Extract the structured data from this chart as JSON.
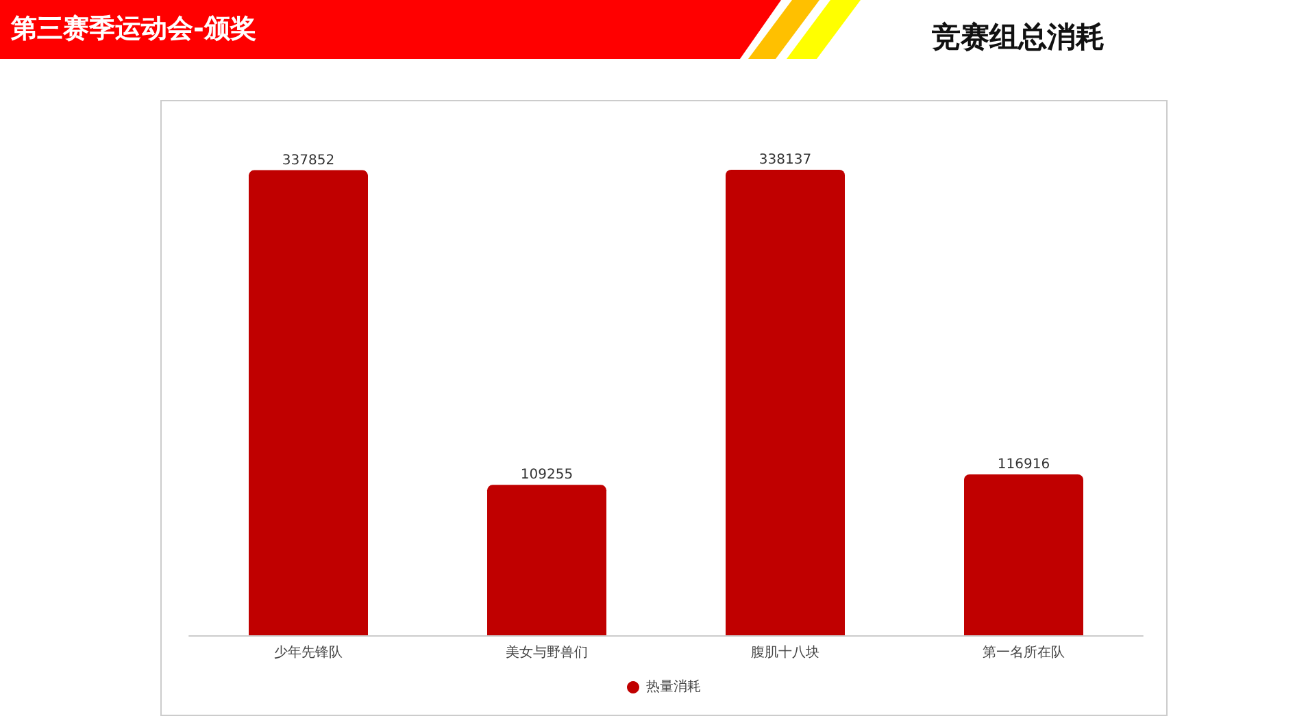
{
  "chart_data": {
    "type": "bar",
    "title": "竞赛组总消耗",
    "subtitle": "第三赛季运动会-颁奖",
    "categories": [
      "少年先锋队",
      "美女与野兽们",
      "腹肌十八块",
      "第一名所在队"
    ],
    "series": [
      {
        "name": "热量消耗",
        "color": "#c00000",
        "values": [
          337852,
          109255,
          338137,
          116916
        ]
      }
    ],
    "data_labels": true,
    "legend": "bottom",
    "ylim": [
      0,
      338137
    ],
    "tick_labels": "x"
  }
}
